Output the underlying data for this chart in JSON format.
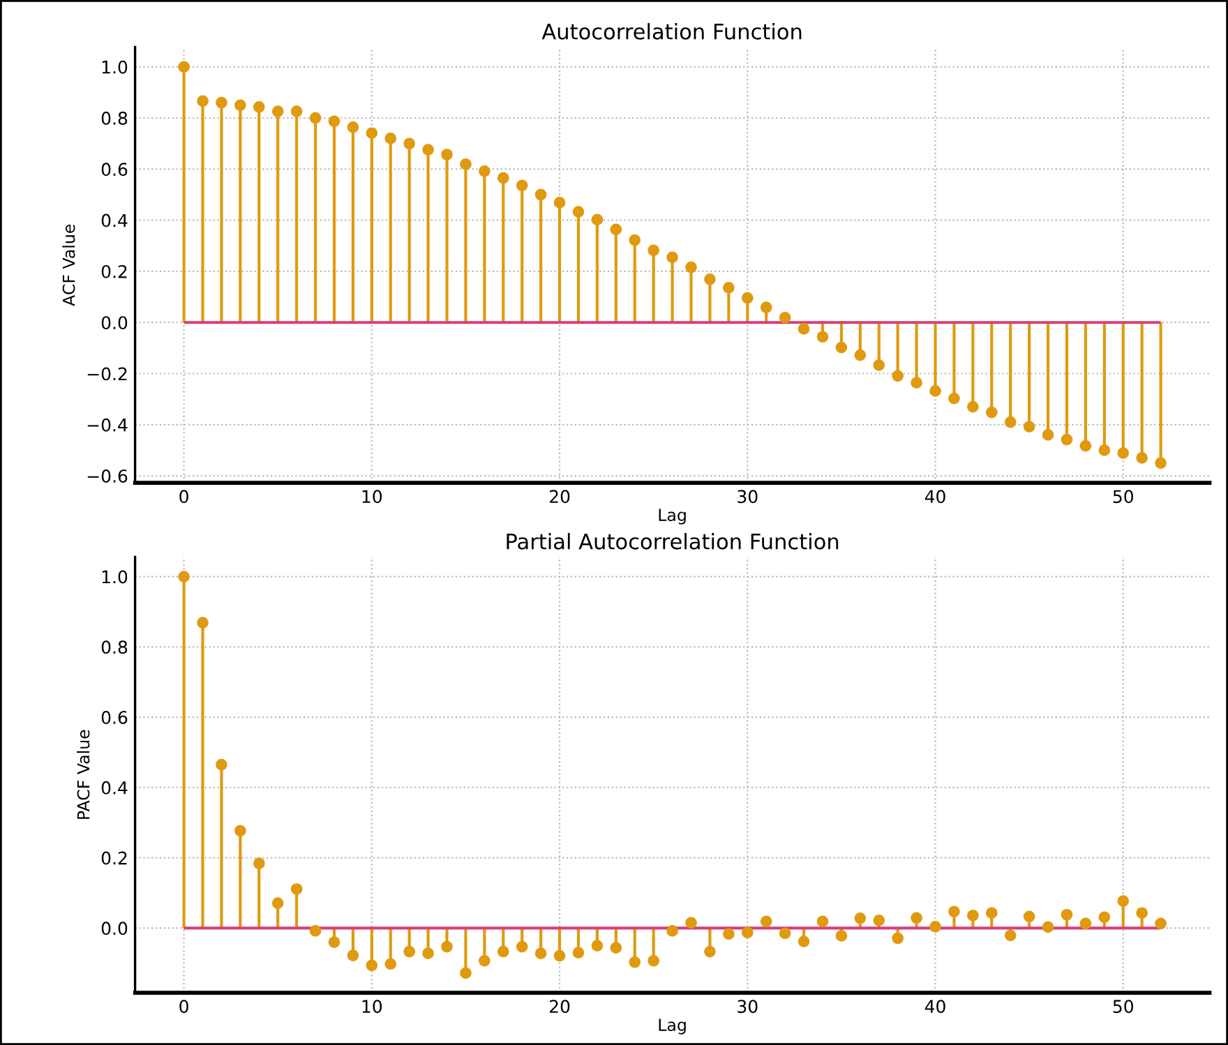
{
  "chart_data": [
    {
      "type": "lollipop",
      "title": "Autocorrelation Function",
      "xlabel": "Lag",
      "ylabel": "ACF Value",
      "x": [
        0,
        1,
        2,
        3,
        4,
        5,
        6,
        7,
        8,
        9,
        10,
        11,
        12,
        13,
        14,
        15,
        16,
        17,
        18,
        19,
        20,
        21,
        22,
        23,
        24,
        25,
        26,
        27,
        28,
        29,
        30,
        31,
        32,
        33,
        34,
        35,
        36,
        37,
        38,
        39,
        40,
        41,
        42,
        43,
        44,
        45,
        46,
        47,
        48,
        49,
        50,
        51,
        52
      ],
      "series": [
        {
          "color": "#e09a10",
          "values": [
            1.0,
            0.866,
            0.86,
            0.85,
            0.843,
            0.826,
            0.826,
            0.8,
            0.787,
            0.764,
            0.741,
            0.72,
            0.7,
            0.676,
            0.657,
            0.619,
            0.592,
            0.565,
            0.536,
            0.5,
            0.469,
            0.433,
            0.402,
            0.364,
            0.322,
            0.282,
            0.255,
            0.216,
            0.169,
            0.136,
            0.096,
            0.059,
            0.019,
            -0.025,
            -0.056,
            -0.098,
            -0.128,
            -0.167,
            -0.209,
            -0.236,
            -0.268,
            -0.297,
            -0.33,
            -0.352,
            -0.39,
            -0.408,
            -0.44,
            -0.458,
            -0.483,
            -0.5,
            -0.511,
            -0.53,
            -0.55
          ]
        }
      ],
      "ref_lines": [
        {
          "axis": "y",
          "value": 0,
          "color": "#d6407a"
        }
      ],
      "xlim": [
        -2.6,
        54.6
      ],
      "ylim": [
        -0.6275,
        1.0775
      ],
      "xticks": [
        0,
        10,
        20,
        30,
        40,
        50
      ],
      "yticks": [
        {
          "value": -0.6,
          "label": "−0.6"
        },
        {
          "value": -0.4,
          "label": "−0.4"
        },
        {
          "value": -0.2,
          "label": "−0.2"
        },
        {
          "value": 0,
          "label": "0.0"
        },
        {
          "value": 0.2,
          "label": "0.2"
        },
        {
          "value": 0.4,
          "label": "0.4"
        },
        {
          "value": 0.6,
          "label": "0.6"
        },
        {
          "value": 0.8,
          "label": "0.8"
        },
        {
          "value": 1.0,
          "label": "1.0"
        }
      ],
      "grid": true,
      "marker": "circle"
    },
    {
      "type": "lollipop",
      "title": "Partial Autocorrelation Function",
      "xlabel": "Lag",
      "ylabel": "PACF Value",
      "x": [
        0,
        1,
        2,
        3,
        4,
        5,
        6,
        7,
        8,
        9,
        10,
        11,
        12,
        13,
        14,
        15,
        16,
        17,
        18,
        19,
        20,
        21,
        22,
        23,
        24,
        25,
        26,
        27,
        28,
        29,
        30,
        31,
        32,
        33,
        34,
        35,
        36,
        37,
        38,
        39,
        40,
        41,
        42,
        43,
        44,
        45,
        46,
        47,
        48,
        49,
        50,
        51,
        52
      ],
      "series": [
        {
          "color": "#e09a10",
          "values": [
            1.0,
            0.869,
            0.465,
            0.277,
            0.184,
            0.071,
            0.111,
            -0.008,
            -0.04,
            -0.078,
            -0.106,
            -0.102,
            -0.067,
            -0.072,
            -0.053,
            -0.128,
            -0.093,
            -0.067,
            -0.053,
            -0.072,
            -0.079,
            -0.07,
            -0.05,
            -0.056,
            -0.097,
            -0.093,
            -0.008,
            0.015,
            -0.067,
            -0.017,
            -0.013,
            0.019,
            -0.015,
            -0.038,
            0.019,
            -0.022,
            0.028,
            0.022,
            -0.029,
            0.029,
            0.004,
            0.047,
            0.036,
            0.043,
            -0.021,
            0.033,
            0.003,
            0.038,
            0.013,
            0.031,
            0.077,
            0.043,
            0.013
          ]
        }
      ],
      "ref_lines": [
        {
          "axis": "y",
          "value": 0,
          "color": "#d6407a"
        }
      ],
      "xlim": [
        -2.6,
        54.6
      ],
      "ylim": [
        -0.184,
        1.056
      ],
      "xticks": [
        0,
        10,
        20,
        30,
        40,
        50
      ],
      "yticks": [
        {
          "value": 0,
          "label": "0.0"
        },
        {
          "value": 0.2,
          "label": "0.2"
        },
        {
          "value": 0.4,
          "label": "0.4"
        },
        {
          "value": 0.6,
          "label": "0.6"
        },
        {
          "value": 0.8,
          "label": "0.8"
        },
        {
          "value": 1.0,
          "label": "1.0"
        }
      ],
      "grid": true,
      "marker": "circle"
    }
  ]
}
